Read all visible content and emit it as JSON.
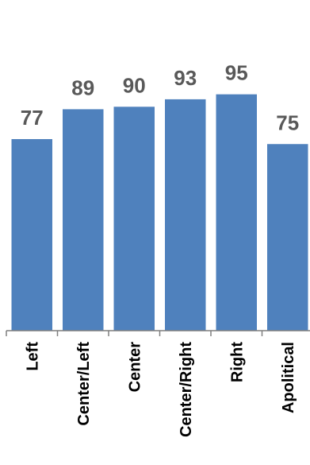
{
  "chart_data": {
    "type": "bar",
    "categories": [
      "Left",
      "Center/Left",
      "Center",
      "Center/Right",
      "Right",
      "Apolitical"
    ],
    "values": [
      77,
      89,
      90,
      93,
      95,
      75
    ],
    "title": "",
    "xlabel": "",
    "ylabel": "",
    "ylim": [
      0,
      100
    ],
    "grid": false,
    "legend": "none",
    "bar_color": "#4f81bd",
    "label_color": "#595959",
    "axis_color": "#7f7f7f"
  }
}
